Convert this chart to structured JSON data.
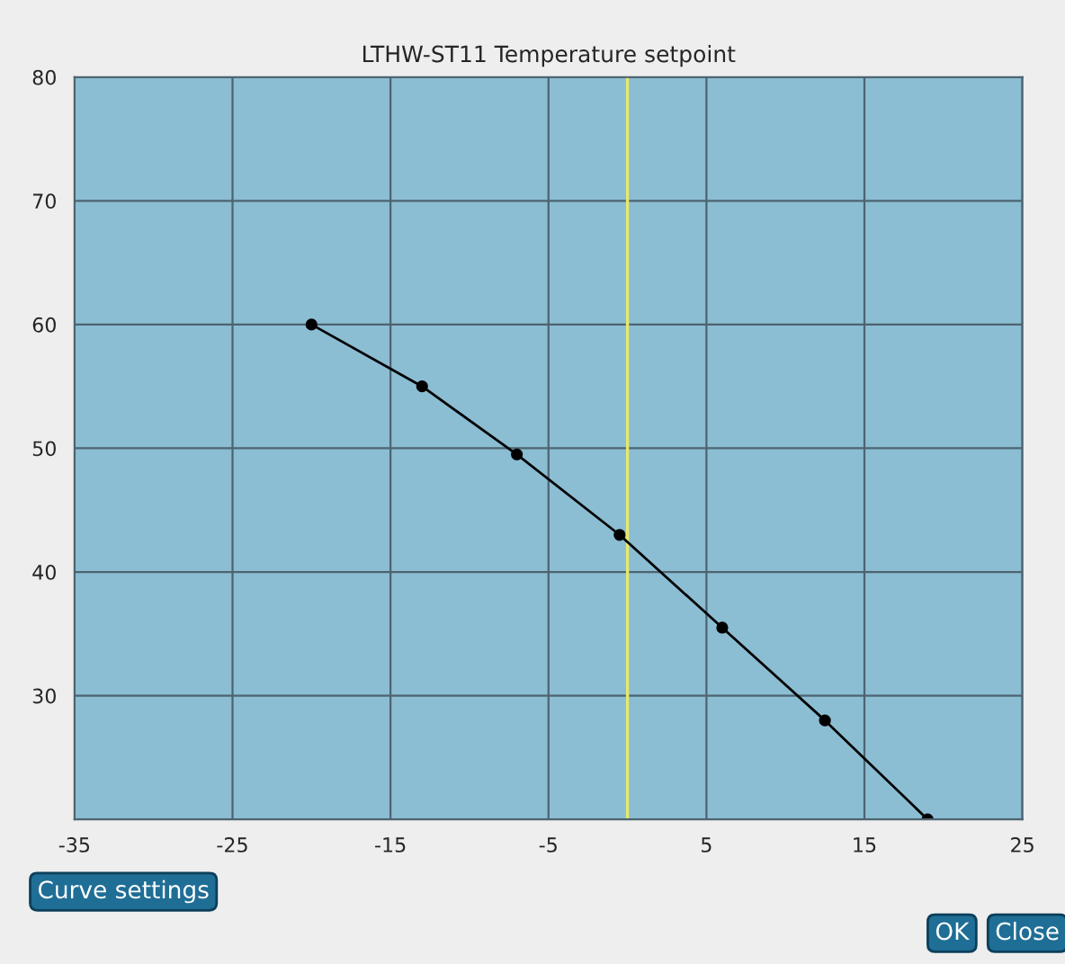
{
  "chart_data": {
    "type": "line",
    "title": "LTHW-ST11 Temperature setpoint",
    "x": [
      -20,
      -13,
      -7,
      -0.5,
      6,
      12.5,
      19
    ],
    "series": [
      {
        "color": "#000000",
        "values": [
          60,
          55,
          49.5,
          43,
          35.5,
          28,
          20
        ]
      }
    ],
    "xlim": [
      -35,
      25
    ],
    "xticks": [
      -35,
      -25,
      -15,
      -5,
      5,
      15,
      25
    ],
    "ylim": [
      20,
      80
    ],
    "yticks": [
      30,
      40,
      50,
      60,
      70,
      80
    ],
    "grid": true,
    "marker": "circle",
    "line_style": "solid",
    "legend": false,
    "ref_lines": [
      {
        "axis": "x",
        "value": 0,
        "color": "#e8e86a"
      }
    ],
    "annotations": [
      "Curve settings",
      "OK",
      "Close"
    ]
  }
}
